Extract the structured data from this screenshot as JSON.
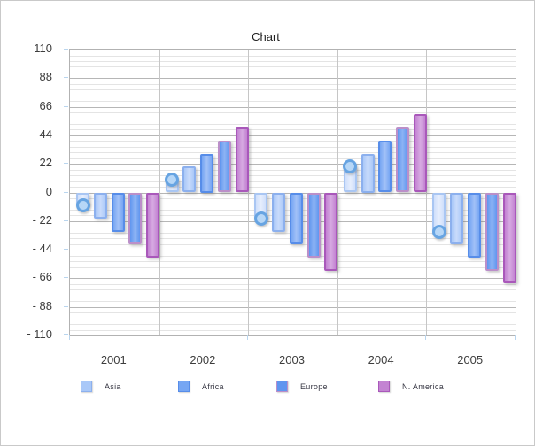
{
  "chart_data": {
    "type": "bar",
    "title": "Chart",
    "categories": [
      "2001",
      "2002",
      "2003",
      "2004",
      "2005"
    ],
    "series": [
      {
        "name": "",
        "in_legend": false,
        "marker": "circle",
        "values": [
          -10,
          10,
          -20,
          20,
          -30
        ],
        "fill": "#cfdffb",
        "border": "#a9c6f3",
        "highlight": "#e6eefd",
        "marker_fill": "#b7d7f7",
        "marker_border": "#67a4e2"
      },
      {
        "name": "Asia",
        "in_legend": true,
        "values": [
          -20,
          20,
          -30,
          30,
          -40
        ],
        "fill": "#a9c8f8",
        "border": "#8cb0ee",
        "highlight": "#c9dbfb"
      },
      {
        "name": "Africa",
        "in_legend": true,
        "values": [
          -30,
          30,
          -40,
          40,
          -50
        ],
        "fill": "#76a6f3",
        "border": "#578de9",
        "highlight": "#a2c1f7"
      },
      {
        "name": "Europe",
        "in_legend": true,
        "values": [
          -40,
          40,
          -50,
          50,
          -60
        ],
        "fill": "#6095ef",
        "border": "#bb8fc9",
        "highlight": "#8db4f4"
      },
      {
        "name": "N. America",
        "in_legend": true,
        "values": [
          -50,
          50,
          -60,
          60,
          -70
        ],
        "fill": "#c383d2",
        "border": "#a958ba",
        "highlight": "#d7aae2"
      }
    ],
    "ylim": [
      -110,
      110
    ],
    "ytick_values": [
      110,
      88,
      66,
      44,
      22,
      0,
      -22,
      -44,
      -66,
      -88,
      -110
    ],
    "ytick_labels": [
      "110",
      "88",
      "66",
      "44",
      "22",
      "0",
      "- 22",
      "- 44",
      "- 66",
      "- 88",
      "- 110"
    ],
    "minor_tick_step": 4.4,
    "grid": "horizontal major+minor lines, vertical category separators",
    "legend_position": "bottom"
  }
}
